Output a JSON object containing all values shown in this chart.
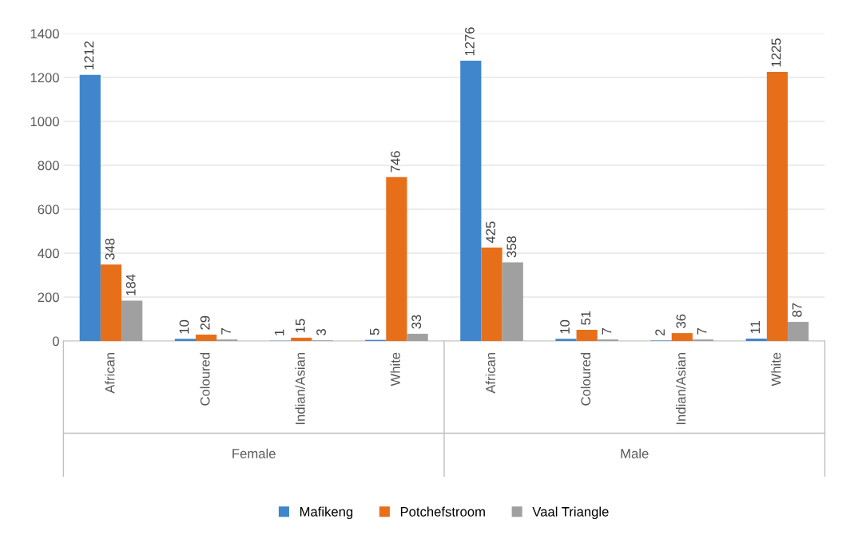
{
  "chart_data": {
    "type": "bar",
    "categories": [
      "African",
      "Coloured",
      "Indian/Asian",
      "White",
      "African",
      "Coloured",
      "Indian/Asian",
      "White"
    ],
    "series": [
      {
        "name": "Mafikeng",
        "color": "#3f86cc",
        "values": [
          1212,
          10,
          1,
          5,
          1276,
          10,
          2,
          11
        ]
      },
      {
        "name": "Potchefstroom",
        "color": "#e86f1a",
        "values": [
          348,
          29,
          15,
          746,
          425,
          51,
          36,
          1225
        ]
      },
      {
        "name": "Vaal Triangle",
        "color": "#a0a0a0",
        "values": [
          184,
          7,
          3,
          33,
          358,
          7,
          7,
          87
        ]
      }
    ],
    "annotations": [
      "Female",
      "Male"
    ],
    "ylim": [
      0,
      1400
    ],
    "yticks": [
      0,
      200,
      400,
      600,
      800,
      1000,
      1200,
      1400
    ],
    "grid": "y",
    "legend": "bottom",
    "data_labels": true
  }
}
